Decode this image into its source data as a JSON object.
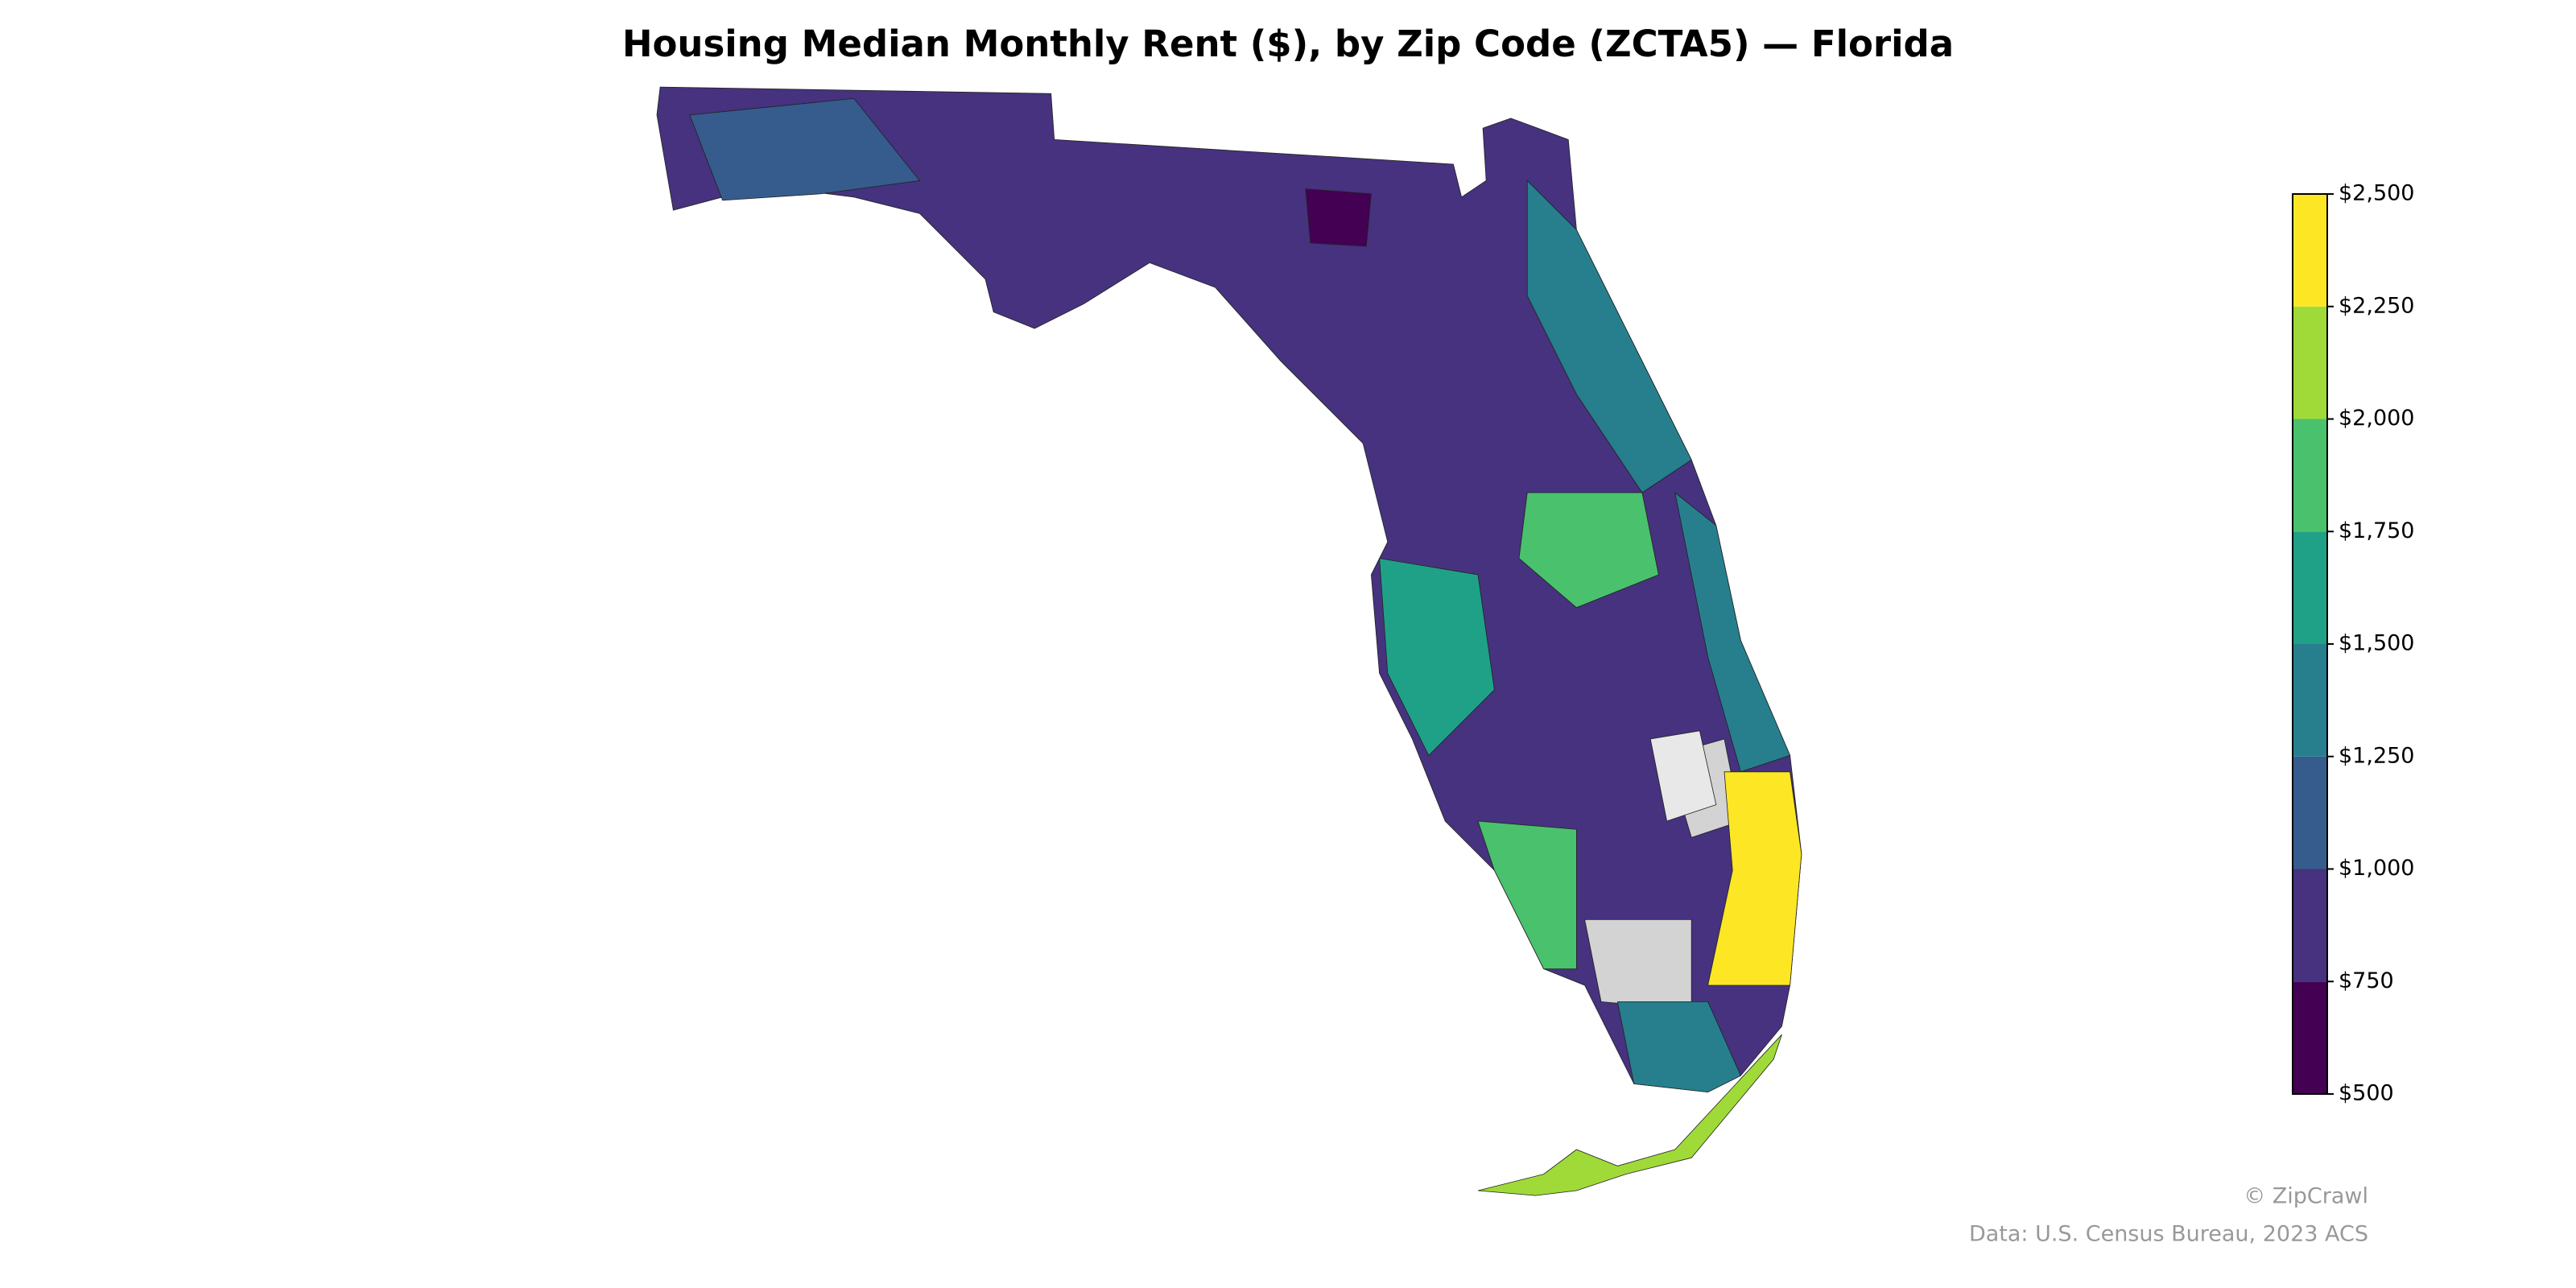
{
  "map": {
    "title": "Housing Median Monthly Rent ($), by Zip Code (ZCTA5) — Florida",
    "colorbar": {
      "lim": [
        500,
        2500
      ],
      "ticks": [
        {
          "value": 500,
          "label": "$500"
        },
        {
          "value": 750,
          "label": "$750"
        },
        {
          "value": 1000,
          "label": "$1,000"
        },
        {
          "value": 1250,
          "label": "$1,250"
        },
        {
          "value": 1500,
          "label": "$1,500"
        },
        {
          "value": 1750,
          "label": "$1,750"
        },
        {
          "value": 2000,
          "label": "$2,000"
        },
        {
          "value": 2250,
          "label": "$2,250"
        },
        {
          "value": 2500,
          "label": "$2,500"
        }
      ],
      "colors": [
        "#440154",
        "#46327e",
        "#365c8d",
        "#277f8e",
        "#1fa187",
        "#4ac16d",
        "#a0da39",
        "#fde725"
      ]
    },
    "credit": "© ZipCrawl",
    "source": "Data: U.S. Census Bureau, 2023 ACS"
  }
}
